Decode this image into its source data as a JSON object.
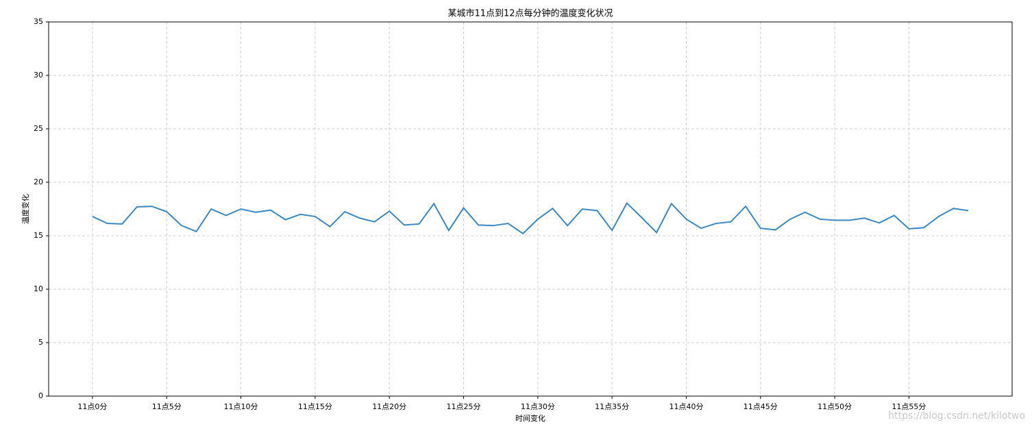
{
  "chart_data": {
    "type": "line",
    "title": "某城市11点到12点每分钟的温度变化状况",
    "xlabel": "时间变化",
    "ylabel": "温度变化",
    "watermark": "https://blog.csdn.net/kilotwo",
    "x": [
      0,
      1,
      2,
      3,
      4,
      5,
      6,
      7,
      8,
      9,
      10,
      11,
      12,
      13,
      14,
      15,
      16,
      17,
      18,
      19,
      20,
      21,
      22,
      23,
      24,
      25,
      26,
      27,
      28,
      29,
      30,
      31,
      32,
      33,
      34,
      35,
      36,
      37,
      38,
      39,
      40,
      41,
      42,
      43,
      44,
      45,
      46,
      47,
      48,
      49,
      50,
      51,
      52,
      53,
      54,
      55,
      56,
      57,
      58,
      59
    ],
    "series": [
      {
        "color": "#3a88c2",
        "values": [
          16.8,
          16.15,
          16.1,
          17.7,
          17.75,
          17.25,
          15.95,
          15.4,
          17.5,
          16.9,
          17.5,
          17.2,
          17.4,
          16.5,
          17.0,
          16.8,
          15.85,
          17.25,
          16.65,
          16.3,
          17.3,
          16.0,
          16.1,
          18.0,
          15.5,
          17.6,
          16.0,
          15.95,
          16.15,
          15.2,
          16.55,
          17.55,
          15.95,
          17.5,
          17.35,
          15.5,
          18.05,
          16.7,
          15.3,
          18.0,
          16.55,
          15.7,
          16.15,
          16.3,
          17.75,
          15.7,
          15.55,
          16.55,
          17.2,
          16.55,
          16.45,
          16.45,
          16.65,
          16.2,
          16.9,
          15.65,
          15.75,
          16.8,
          17.55,
          17.35
        ]
      }
    ],
    "xlim": [
      -2.95,
      61.95
    ],
    "xticks": [
      {
        "value": 0,
        "label": "11点0分"
      },
      {
        "value": 5,
        "label": "11点5分"
      },
      {
        "value": 10,
        "label": "11点10分"
      },
      {
        "value": 15,
        "label": "11点15分"
      },
      {
        "value": 20,
        "label": "11点20分"
      },
      {
        "value": 25,
        "label": "11点25分"
      },
      {
        "value": 30,
        "label": "11点30分"
      },
      {
        "value": 35,
        "label": "11点35分"
      },
      {
        "value": 40,
        "label": "11点40分"
      },
      {
        "value": 45,
        "label": "11点45分"
      },
      {
        "value": 50,
        "label": "11点50分"
      },
      {
        "value": 55,
        "label": "11点55分"
      }
    ],
    "ylim": [
      0,
      35
    ],
    "yticks": [
      0,
      5,
      10,
      15,
      20,
      25,
      30,
      35
    ],
    "grid": true
  }
}
